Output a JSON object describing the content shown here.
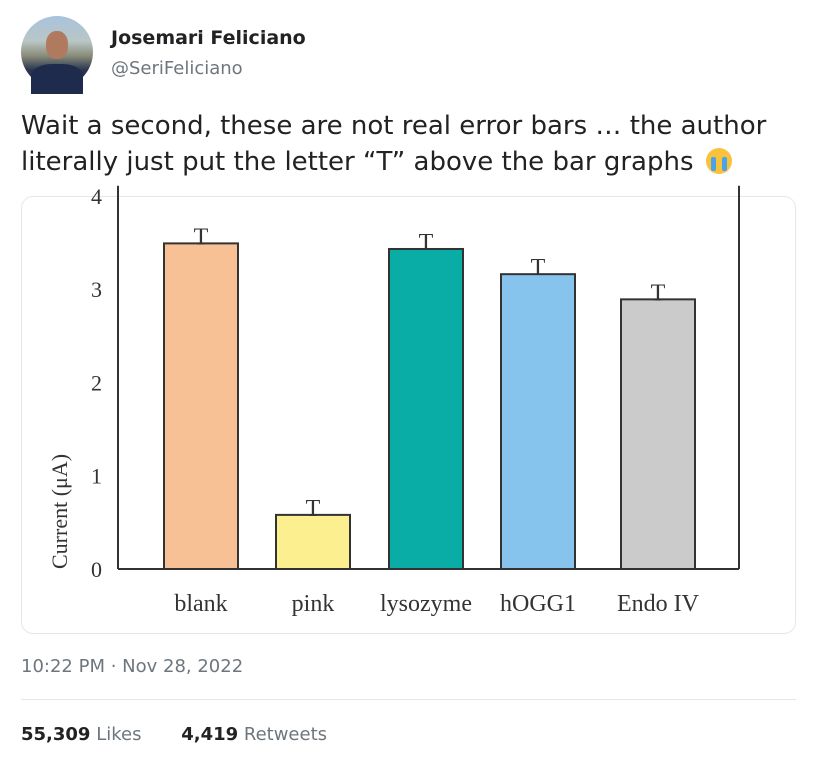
{
  "tweet": {
    "author_name": "Josemari Feliciano",
    "author_handle": "@SeriFeliciano",
    "text": "Wait a second, these are not real error bars … the author literally just put the letter “T” above the bar graphs",
    "emoji": "loudly-crying-face",
    "timestamp": "10:22 PM · Nov 28, 2022",
    "likes_count": "55,309",
    "likes_label": "Likes",
    "retweets_count": "4,419",
    "retweets_label": "Retweets"
  },
  "chart_data": {
    "type": "bar",
    "categories": [
      "blank",
      "pink",
      "lysozyme",
      "hOGG1",
      "Endo IV"
    ],
    "values": [
      3.49,
      0.58,
      3.43,
      3.16,
      2.89
    ],
    "colors": [
      "#f7c195",
      "#fbef8f",
      "#0aaca6",
      "#86c4ee",
      "#cbcbcb"
    ],
    "error_marker": "T",
    "ylabel": "Current (μA)",
    "xlabel": "",
    "yticks": [
      0,
      1,
      2,
      3,
      4
    ],
    "ylim": [
      0,
      4
    ],
    "grid": false
  }
}
